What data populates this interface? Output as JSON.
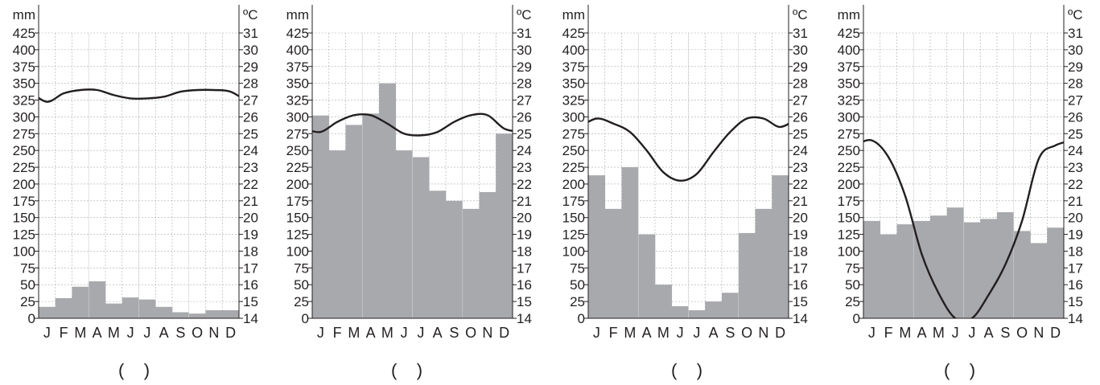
{
  "colors": {
    "bar": "#a7a9ac",
    "line": "#231f20",
    "grid": "#a7a9ac",
    "background": "#ffffff"
  },
  "chart_data": [
    {
      "type": "bar",
      "subtype": "climograph",
      "label": "(    )",
      "left_unit": "mm",
      "right_unit": "ºC",
      "categories": [
        "J",
        "F",
        "M",
        "A",
        "M",
        "J",
        "J",
        "A",
        "S",
        "O",
        "N",
        "D"
      ],
      "precip_ylim": [
        0,
        425
      ],
      "precip_ticks": [
        0,
        25,
        50,
        75,
        100,
        125,
        150,
        175,
        200,
        225,
        250,
        275,
        300,
        325,
        350,
        375,
        400,
        425
      ],
      "temp_ylim": [
        14,
        31
      ],
      "temp_ticks": [
        14,
        15,
        16,
        17,
        18,
        19,
        20,
        21,
        22,
        23,
        24,
        25,
        26,
        27,
        28,
        29,
        30,
        31
      ],
      "precipitation": [
        17,
        30,
        47,
        55,
        22,
        31,
        28,
        17,
        9,
        7,
        12,
        12
      ],
      "temperature": [
        26.9,
        27.4,
        27.6,
        27.6,
        27.3,
        27.1,
        27.1,
        27.2,
        27.5,
        27.6,
        27.6,
        27.5
      ]
    },
    {
      "type": "bar",
      "subtype": "climograph",
      "label": "(    )",
      "left_unit": "mm",
      "right_unit": "ºC",
      "categories": [
        "J",
        "F",
        "M",
        "A",
        "M",
        "J",
        "J",
        "A",
        "S",
        "O",
        "N",
        "D"
      ],
      "precip_ylim": [
        0,
        425
      ],
      "precip_ticks": [
        0,
        25,
        50,
        75,
        100,
        125,
        150,
        175,
        200,
        225,
        250,
        275,
        300,
        325,
        350,
        375,
        400,
        425
      ],
      "temp_ylim": [
        14,
        31
      ],
      "temp_ticks": [
        14,
        15,
        16,
        17,
        18,
        19,
        20,
        21,
        22,
        23,
        24,
        25,
        26,
        27,
        28,
        29,
        30,
        31
      ],
      "precipitation": [
        302,
        250,
        288,
        305,
        350,
        250,
        240,
        190,
        175,
        163,
        188,
        275
      ],
      "temperature": [
        25.1,
        25.7,
        26.1,
        26.1,
        25.6,
        25,
        24.9,
        25.1,
        25.7,
        26.1,
        26.1,
        25.3
      ]
    },
    {
      "type": "bar",
      "subtype": "climograph",
      "label": "(    )",
      "left_unit": "mm",
      "right_unit": "ºC",
      "categories": [
        "J",
        "F",
        "M",
        "A",
        "M",
        "J",
        "J",
        "A",
        "S",
        "O",
        "N",
        "D"
      ],
      "precip_ylim": [
        0,
        425
      ],
      "precip_ticks": [
        0,
        25,
        50,
        75,
        100,
        125,
        150,
        175,
        200,
        225,
        250,
        275,
        300,
        325,
        350,
        375,
        400,
        425
      ],
      "temp_ylim": [
        14,
        31
      ],
      "temp_ticks": [
        14,
        15,
        16,
        17,
        18,
        19,
        20,
        21,
        22,
        23,
        24,
        25,
        26,
        27,
        28,
        29,
        30,
        31
      ],
      "precipitation": [
        213,
        163,
        225,
        125,
        50,
        18,
        12,
        25,
        38,
        127,
        163,
        213
      ],
      "temperature": [
        25.9,
        25.6,
        25.1,
        24,
        22.7,
        22.2,
        22.6,
        23.9,
        25.1,
        25.9,
        25.9,
        25.4
      ]
    },
    {
      "type": "bar",
      "subtype": "climograph",
      "label": "(    )",
      "left_unit": "mm",
      "right_unit": "ºC",
      "categories": [
        "J",
        "F",
        "M",
        "A",
        "M",
        "J",
        "J",
        "A",
        "S",
        "O",
        "N",
        "D"
      ],
      "precip_ylim": [
        0,
        425
      ],
      "precip_ticks": [
        0,
        25,
        50,
        75,
        100,
        125,
        150,
        175,
        200,
        225,
        250,
        275,
        300,
        325,
        350,
        375,
        400,
        425
      ],
      "temp_ylim": [
        14,
        31
      ],
      "temp_ticks": [
        14,
        15,
        16,
        17,
        18,
        19,
        20,
        21,
        22,
        23,
        24,
        25,
        26,
        27,
        28,
        29,
        30,
        31
      ],
      "precipitation": [
        145,
        125,
        140,
        145,
        153,
        165,
        143,
        148,
        158,
        130,
        112,
        135
      ],
      "temperature": [
        24.6,
        23.6,
        21.3,
        17.8,
        15.5,
        14,
        14,
        15.4,
        17.2,
        19.8,
        23.5,
        24.3
      ]
    }
  ]
}
